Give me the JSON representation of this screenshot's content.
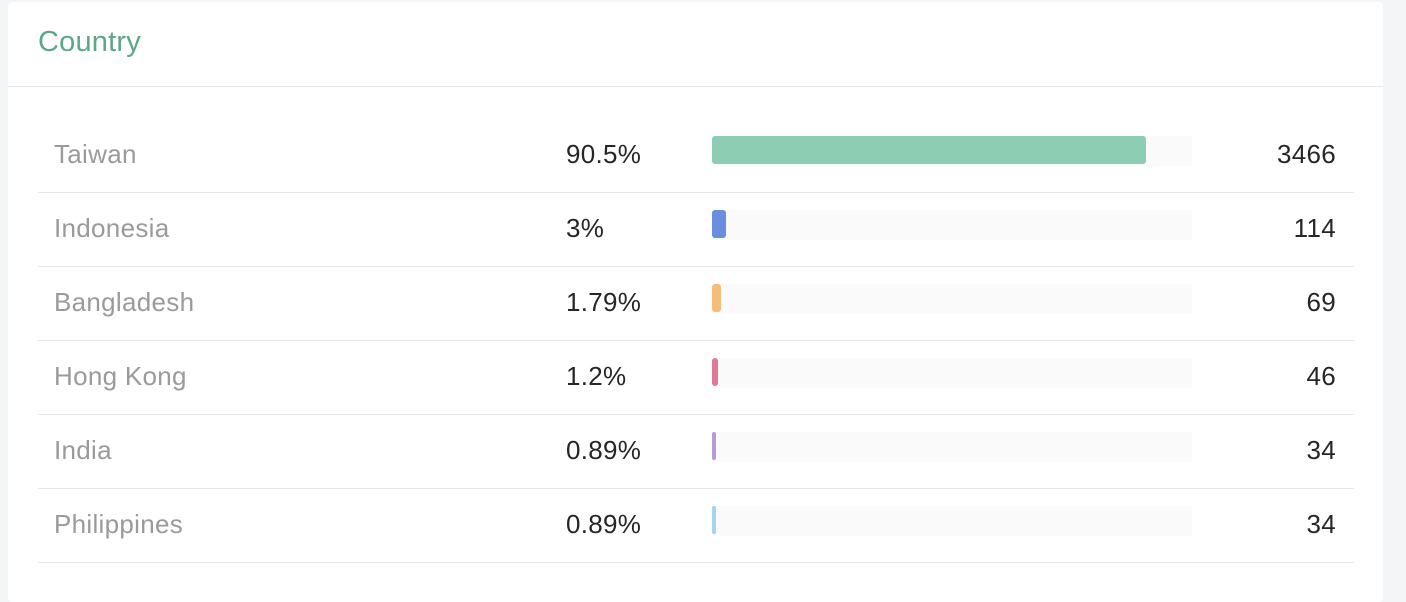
{
  "card": {
    "title": "Country"
  },
  "rows": [
    {
      "country": "Taiwan",
      "percent": "90.5%",
      "count": "3466",
      "fraction": 0.905,
      "color": "#8dcdb4"
    },
    {
      "country": "Indonesia",
      "percent": "3%",
      "count": "114",
      "fraction": 0.03,
      "color": "#6b8fe0"
    },
    {
      "country": "Bangladesh",
      "percent": "1.79%",
      "count": "69",
      "fraction": 0.0179,
      "color": "#f4bd7a"
    },
    {
      "country": "Hong Kong",
      "percent": "1.2%",
      "count": "46",
      "fraction": 0.012,
      "color": "#e07896"
    },
    {
      "country": "India",
      "percent": "0.89%",
      "count": "34",
      "fraction": 0.0089,
      "color": "#b79ad6"
    },
    {
      "country": "Philippines",
      "percent": "0.89%",
      "count": "34",
      "fraction": 0.0089,
      "color": "#a5d6ec"
    }
  ]
}
